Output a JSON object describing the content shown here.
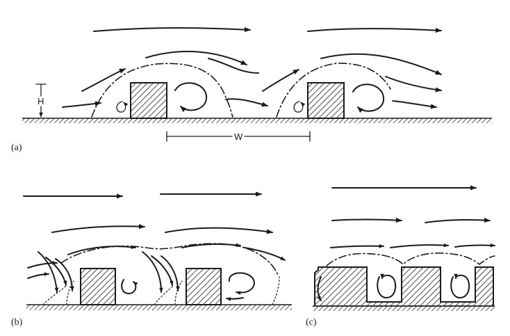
{
  "panels": {
    "a": {
      "label": "(a)",
      "height_symbol": "H",
      "spacing_symbol": "W"
    },
    "b": {
      "label": "(b)"
    },
    "c": {
      "label": "(c)"
    }
  },
  "colors": {
    "ink": "#1a1a1a",
    "background": "#ffffff"
  }
}
